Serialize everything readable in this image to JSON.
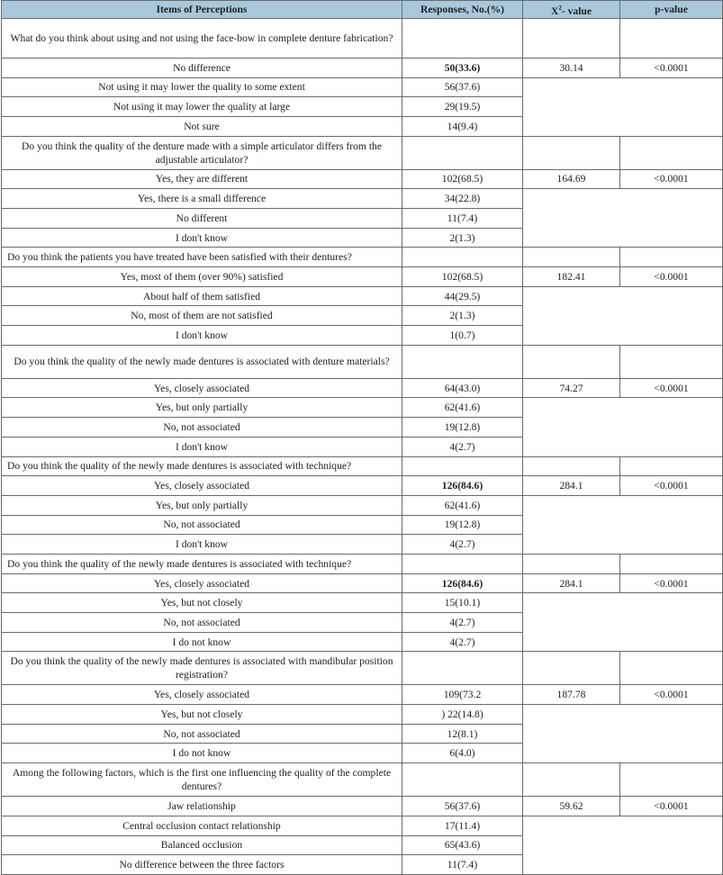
{
  "table": {
    "header_color": "#a9c8dc",
    "headers": {
      "item": "Items of Perceptions",
      "responses": "Responses, No.(%)",
      "chi_prefix": "X",
      "chi_sup": "2",
      "chi_suffix": "- value",
      "p": "p-value"
    },
    "sections": [
      {
        "question": "What do you think about using and not using the face-bow in complete denture fabrication?",
        "lines": 2,
        "chi2": "30.14",
        "p": "<0.0001",
        "options": [
          {
            "label": "No difference",
            "response": "50(33.6)",
            "bold": true
          },
          {
            "label": "Not using it may lower the quality to some extent",
            "response": "56(37.6)"
          },
          {
            "label": "Not using it may lower the quality at large",
            "response": "29(19.5)"
          },
          {
            "label": "Not sure",
            "response": "14(9.4)"
          }
        ]
      },
      {
        "question": "Do you think the quality of the denture made with a simple articulator differs from the adjustable articulator?",
        "lines": 2,
        "chi2": "164.69",
        "p": "<0.0001",
        "options": [
          {
            "label": "Yes, they are different",
            "response": "102(68.5)"
          },
          {
            "label": "Yes, there is a small difference",
            "response": "34(22.8)"
          },
          {
            "label": "No different",
            "response": "11(7.4)"
          },
          {
            "label": "I don't know",
            "response": "2(1.3)"
          }
        ]
      },
      {
        "question": "Do you think the patients you have treated have been satisfied with their dentures?",
        "lines": 1,
        "chi2": "182.41",
        "p": "<0.0001",
        "options": [
          {
            "label": "Yes, most of them (over 90%) satisfied",
            "response": "102(68.5)"
          },
          {
            "label": "About half of them satisfied",
            "response": "44(29.5)"
          },
          {
            "label": "No, most of them are not satisfied",
            "response": "2(1.3)"
          },
          {
            "label": "I don't know",
            "response": "1(0.7)"
          }
        ]
      },
      {
        "question": "Do you think the quality of the newly made dentures is associated with denture materials?",
        "lines": 2,
        "chi2": "74.27",
        "p": "<0.0001",
        "options": [
          {
            "label": "Yes, closely associated",
            "response": "64(43.0)"
          },
          {
            "label": "Yes, but only partially",
            "response": "62(41.6)"
          },
          {
            "label": "No, not associated",
            "response": "19(12.8)"
          },
          {
            "label": "I don't know",
            "response": "4(2.7)"
          }
        ]
      },
      {
        "question": "Do you think the quality of the newly made dentures is associated with technique?",
        "lines": 1,
        "chi2": "284.1",
        "p": "<0.0001",
        "options": [
          {
            "label": "Yes, closely associated",
            "response": "126(84.6)",
            "bold": true
          },
          {
            "label": "Yes, but only partially",
            "response": "62(41.6)"
          },
          {
            "label": "No, not associated",
            "response": "19(12.8)"
          },
          {
            "label": "I don't know",
            "response": "4(2.7)"
          }
        ]
      },
      {
        "question": "Do you think the quality of the newly made dentures is associated with technique?",
        "lines": 1,
        "chi2": "284.1",
        "p": "<0.0001",
        "options": [
          {
            "label": "Yes, closely associated",
            "response": "126(84.6)",
            "bold": true
          },
          {
            "label": "Yes, but not closely",
            "response": "15(10.1)"
          },
          {
            "label": "No, not associated",
            "response": "4(2.7)"
          },
          {
            "label": "I do not know",
            "response": "4(2.7)"
          }
        ]
      },
      {
        "question": "Do you think the quality of the newly made dentures is associated with mandibular position registration?",
        "lines": 2,
        "chi2": "187.78",
        "p": "<0.0001",
        "options": [
          {
            "label": "Yes, closely associated",
            "response": "109(73.2"
          },
          {
            "label": "Yes, but not closely",
            "response": ") 22(14.8)"
          },
          {
            "label": "No, not associated",
            "response": "12(8.1)"
          },
          {
            "label": "I do not know",
            "response": "6(4.0)"
          }
        ]
      },
      {
        "question": "Among the following factors, which is the first one influencing the quality of the complete dentures?",
        "lines": 2,
        "chi2": "59.62",
        "p": "<0.0001",
        "options": [
          {
            "label": "Jaw relationship",
            "response": "56(37.6)"
          },
          {
            "label": "Central occlusion contact relationship",
            "response": "17(11.4)"
          },
          {
            "label": "Balanced occlusion",
            "response": "65(43.6)"
          },
          {
            "label": "No difference between the three factors",
            "response": "11(7.4)"
          }
        ]
      }
    ]
  }
}
